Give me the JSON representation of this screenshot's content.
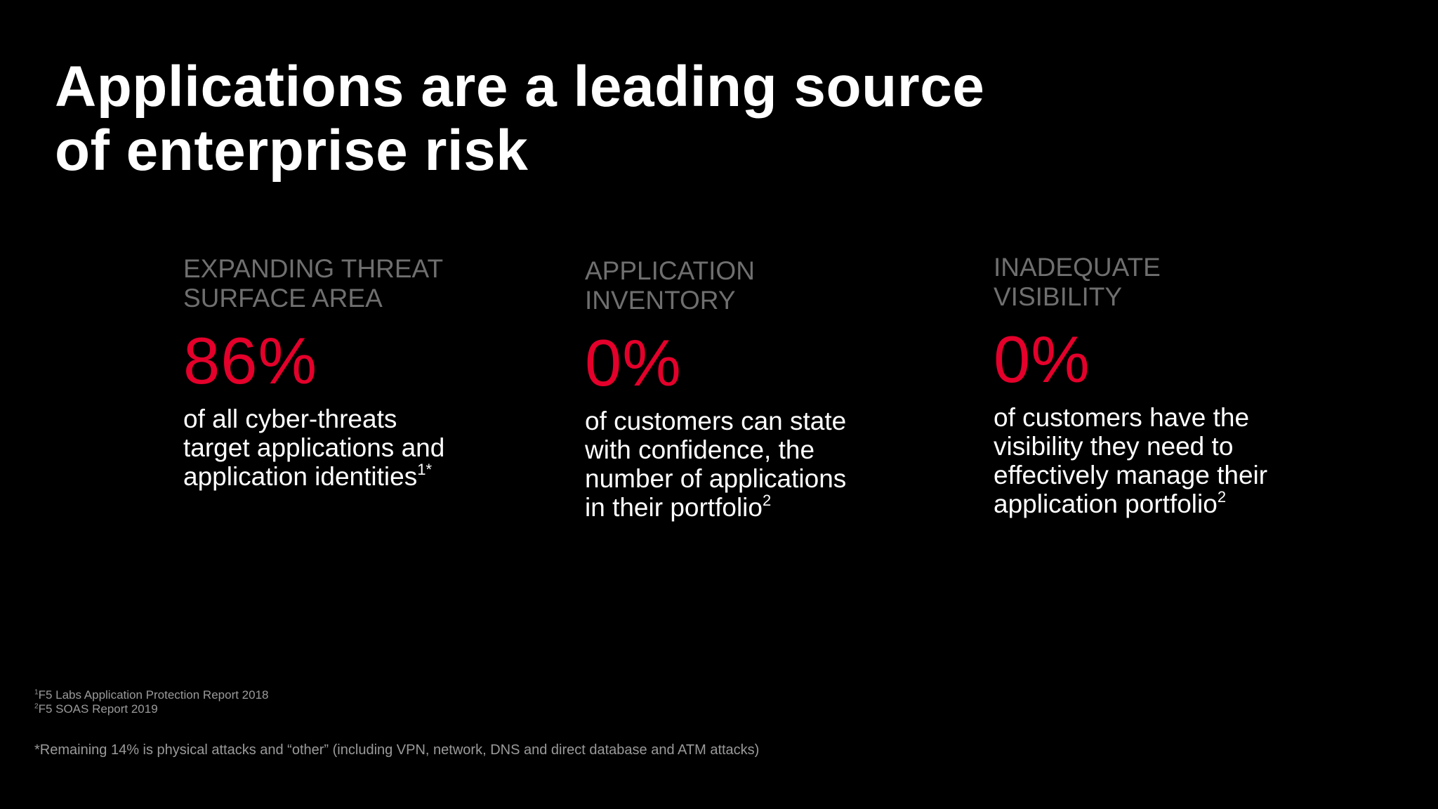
{
  "slide": {
    "title_line_1": "Applications are a leading source",
    "title_line_2": "of enterprise risk",
    "stats": [
      {
        "heading_line_1": "EXPANDING THREAT",
        "heading_line_2": "SURFACE AREA",
        "value": "86%",
        "desc_line_1": "of all cyber-threats",
        "desc_line_2": "target applications and",
        "desc_line_3": "application identities",
        "desc_sup": "1*"
      },
      {
        "heading_line_1": "APPLICATION",
        "heading_line_2": "INVENTORY",
        "value": "0%",
        "desc_line_1": "of customers can state",
        "desc_line_2": "with confidence, the",
        "desc_line_3": "number of applications",
        "desc_line_4": "in their portfolio",
        "desc_sup": "2"
      },
      {
        "heading_line_1": "INADEQUATE",
        "heading_line_2": "VISIBILITY",
        "value": "0%",
        "desc_line_1": "of customers have the",
        "desc_line_2": "visibility they need to",
        "desc_line_3": "effectively manage their",
        "desc_line_4": "application portfolio",
        "desc_sup": "2"
      }
    ],
    "footnotes": [
      {
        "marker": "1",
        "text": "F5 Labs Application Protection Report 2018"
      },
      {
        "marker": "2",
        "text": "F5 SOAS Report 2019"
      }
    ],
    "remaining_note": "*Remaining 14% is physical attacks and “other” (including VPN, network, DNS and direct database and ATM attacks)"
  },
  "colors": {
    "background": "#000000",
    "title": "#ffffff",
    "heading": "#6f6f6f",
    "accent_value": "#e4002b",
    "description": "#ffffff",
    "footnote": "#9a9a9a"
  }
}
